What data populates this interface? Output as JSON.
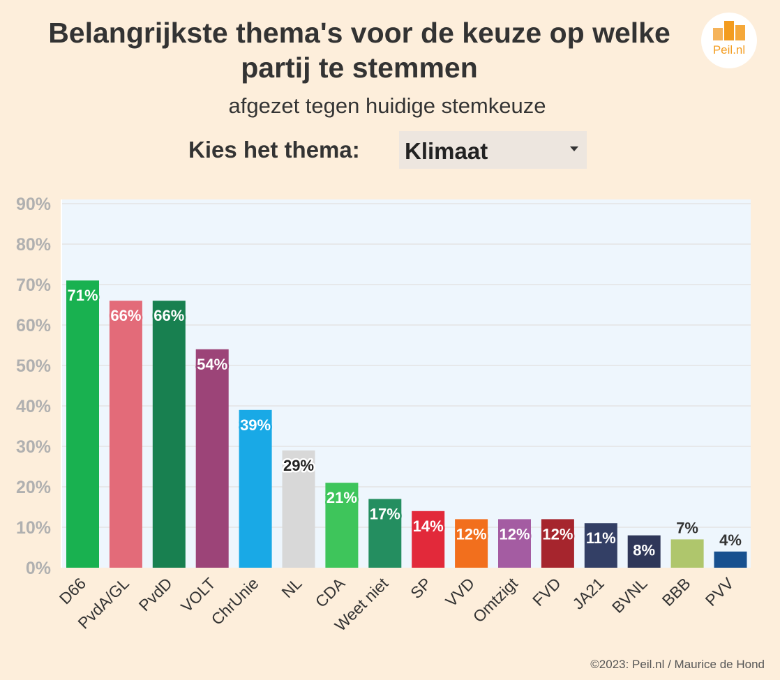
{
  "header": {
    "title_line1": "Belangrijkste thema's voor de keuze op welke",
    "title_line2": "partij te stemmen",
    "subtitle": "afgezet tegen huidige stemkeuze"
  },
  "logo": {
    "text": "Peil.nl",
    "color": "#f39c1f"
  },
  "selector": {
    "label": "Kies het thema:",
    "value": "Klimaat"
  },
  "footer": {
    "credit": "©2023: Peil.nl / Maurice de Hond"
  },
  "chart_data": {
    "type": "bar",
    "title": "",
    "xlabel": "",
    "ylabel": "",
    "ylim": [
      0,
      90
    ],
    "yticks": [
      "0%",
      "10%",
      "20%",
      "30%",
      "40%",
      "50%",
      "60%",
      "70%",
      "80%",
      "90%"
    ],
    "grid": true,
    "plot_background": "#eef6fd",
    "categories": [
      "D66",
      "PvdA/GL",
      "PvdD",
      "VOLT",
      "ChrUnie",
      "NL",
      "CDA",
      "Weet niet",
      "SP",
      "VVD",
      "Omtzigt",
      "FVD",
      "JA21",
      "BVNL",
      "BBB",
      "PVV"
    ],
    "values": [
      71,
      66,
      66,
      54,
      39,
      29,
      21,
      17,
      14,
      12,
      12,
      12,
      11,
      8,
      7,
      4
    ],
    "labels": [
      "71%",
      "66%",
      "66%",
      "54%",
      "39%",
      "29%",
      "21%",
      "17%",
      "14%",
      "12%",
      "12%",
      "12%",
      "11%",
      "8%",
      "7%",
      "4%"
    ],
    "colors": [
      "#19b150",
      "#e36b79",
      "#188050",
      "#9c4478",
      "#19a9e6",
      "#d8d8d8",
      "#3ec55b",
      "#248e60",
      "#e2293a",
      "#f26f1d",
      "#a45ca2",
      "#a6252d",
      "#333f65",
      "#2f3759",
      "#afc66c",
      "#17508f"
    ]
  }
}
